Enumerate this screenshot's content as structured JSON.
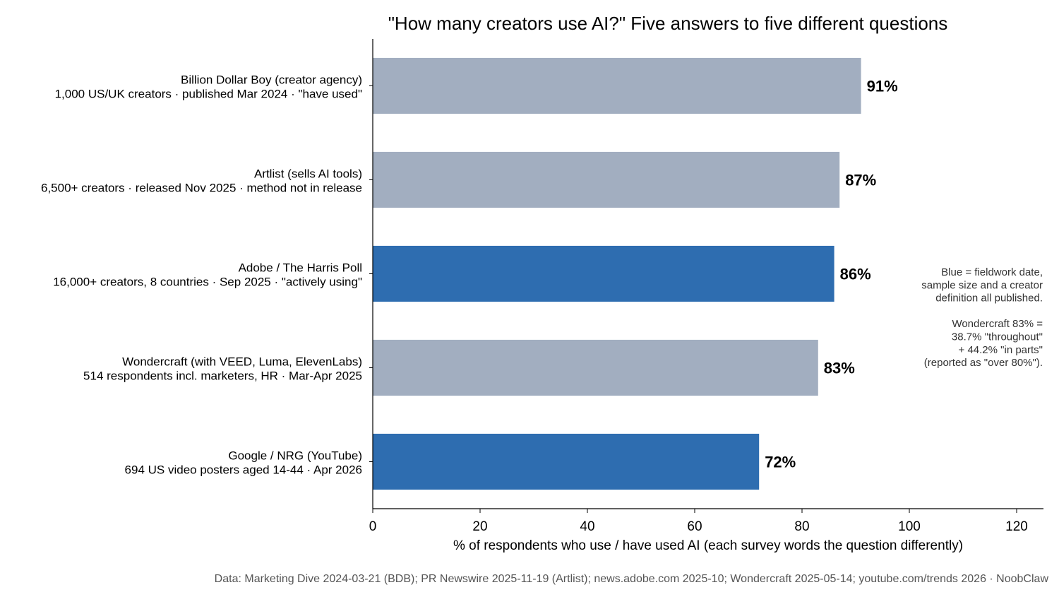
{
  "chart_data": {
    "type": "bar",
    "orientation": "horizontal",
    "title": "\"How many creators use AI?\" Five answers to five different questions",
    "xlabel": "% of respondents who use / have used AI (each survey words the question differently)",
    "xlim": [
      0,
      125
    ],
    "xticks": [
      0,
      20,
      40,
      60,
      80,
      100,
      120
    ],
    "grid": false,
    "bars": [
      {
        "label_line1": "Billion Dollar Boy (creator agency)",
        "label_line2": "1,000 US/UK creators · published Mar 2024 · \"have used\"",
        "value": 91,
        "value_label": "91%",
        "color": "#a2aec0"
      },
      {
        "label_line1": "Artlist (sells AI tools)",
        "label_line2": "6,500+ creators · released Nov 2025 · method not in release",
        "value": 87,
        "value_label": "87%",
        "color": "#a2aec0"
      },
      {
        "label_line1": "Adobe / The Harris Poll",
        "label_line2": "16,000+ creators, 8 countries · Sep 2025 · \"actively using\"",
        "value": 86,
        "value_label": "86%",
        "color": "#2e6db0"
      },
      {
        "label_line1": "Wondercraft (with VEED, Luma, ElevenLabs)",
        "label_line2": "514 respondents incl. marketers, HR · Mar-Apr 2025",
        "value": 83,
        "value_label": "83%",
        "color": "#a2aec0"
      },
      {
        "label_line1": "Google / NRG (YouTube)",
        "label_line2": "694 US video posters aged 14-44 · Apr 2026",
        "value": 72,
        "value_label": "72%",
        "color": "#2e6db0"
      }
    ],
    "annotation_lines": [
      "Blue = fieldwork date,",
      "sample size and a creator",
      "definition all published.",
      "",
      "Wondercraft 83% =",
      "38.7% \"throughout\"",
      "+ 44.2% \"in parts\"",
      "(reported as \"over 80%\")."
    ],
    "footer": "Data: Marketing Dive 2024-03-21 (BDB); PR Newswire 2025-11-19 (Artlist); news.adobe.com 2025-10; Wondercraft 2025-05-14; youtube.com/trends 2026 · NoobClaw"
  }
}
